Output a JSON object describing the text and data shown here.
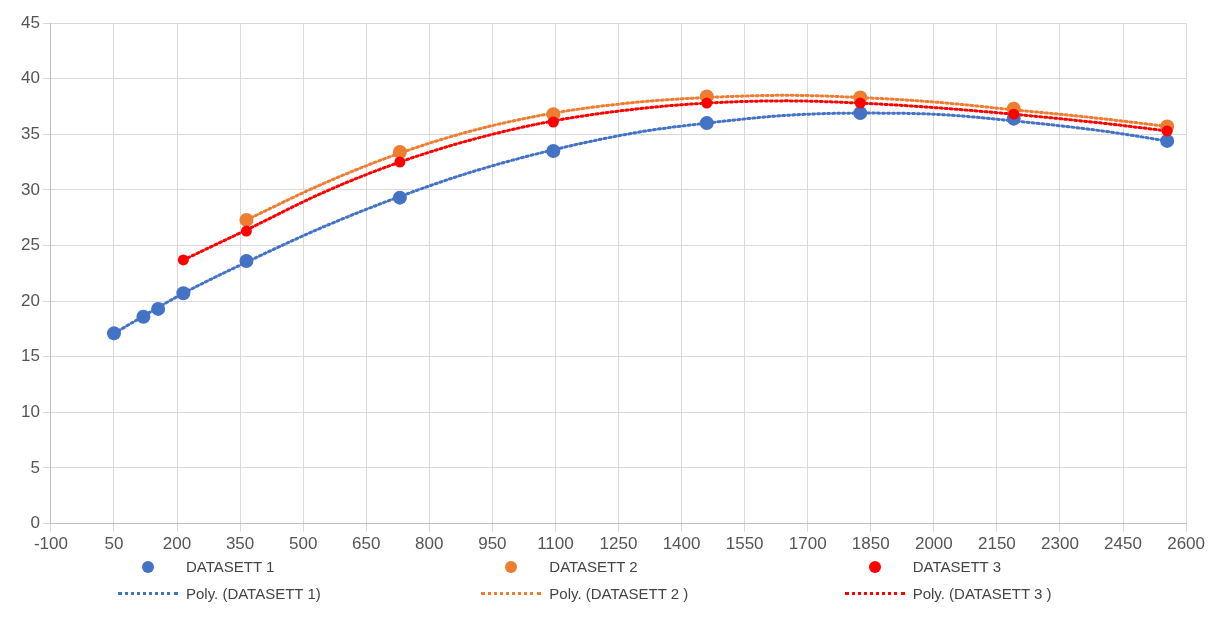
{
  "chart_data": {
    "type": "scatter",
    "xlim": [
      -100,
      2600
    ],
    "xticks": [
      -100,
      50,
      200,
      350,
      500,
      650,
      800,
      950,
      1100,
      1250,
      1400,
      1550,
      1700,
      1850,
      2000,
      2150,
      2300,
      2450,
      2600
    ],
    "ylim": [
      0,
      45
    ],
    "yticks": [
      0,
      5,
      10,
      15,
      20,
      25,
      30,
      35,
      40,
      45
    ],
    "grid": true,
    "legend": "bottom",
    "series": [
      {
        "name": "DATASETT 1",
        "color": "#4472c4",
        "marker": "circle",
        "x": [
          50,
          120,
          155,
          215,
          365,
          730,
          1095,
          1460,
          1825,
          2190,
          2555
        ],
        "values": [
          17.1,
          18.6,
          19.3,
          20.7,
          23.6,
          29.3,
          33.5,
          36.0,
          36.9,
          36.4,
          34.4
        ]
      },
      {
        "name": "DATASETT 2",
        "color": "#ed7d31",
        "marker": "circle",
        "x": [
          365,
          730,
          1095,
          1460,
          1825,
          2190,
          2555
        ],
        "values": [
          27.3,
          33.4,
          36.8,
          38.4,
          38.3,
          37.3,
          35.7
        ]
      },
      {
        "name": "DATASETT 3",
        "color": "#ff0000",
        "marker": "circle",
        "x": [
          215,
          365,
          730,
          1095,
          1460,
          1825,
          2190,
          2555
        ],
        "values": [
          23.7,
          26.3,
          32.5,
          36.1,
          37.8,
          37.8,
          36.8,
          35.3
        ]
      },
      {
        "name": "Poly. (DATASETT 1)",
        "type": "line",
        "color": "#4472c4",
        "marker": "none",
        "line_style": "dotted",
        "x": [
          50,
          215,
          365,
          550,
          730,
          900,
          1095,
          1300,
          1460,
          1650,
          1825,
          2000,
          2190,
          2400,
          2555
        ],
        "values": [
          17.1,
          20.7,
          23.5,
          26.7,
          29.4,
          31.6,
          33.6,
          35.2,
          36.0,
          36.7,
          36.9,
          36.8,
          36.2,
          35.3,
          34.4
        ]
      },
      {
        "name": "Poly. (DATASETT 2 )",
        "type": "line",
        "color": "#ed7d31",
        "marker": "none",
        "line_style": "dotted",
        "x": [
          365,
          550,
          730,
          900,
          1095,
          1300,
          1460,
          1650,
          1825,
          2000,
          2190,
          2400,
          2555
        ],
        "values": [
          27.3,
          30.6,
          33.3,
          35.3,
          36.9,
          37.9,
          38.3,
          38.5,
          38.3,
          37.9,
          37.2,
          36.4,
          35.7
        ]
      },
      {
        "name": "Poly. (DATASETT 3 )",
        "type": "line",
        "color": "#ff0000",
        "marker": "none",
        "line_style": "dotted",
        "x": [
          215,
          365,
          550,
          730,
          900,
          1095,
          1300,
          1460,
          1650,
          1825,
          2000,
          2190,
          2400,
          2555
        ],
        "values": [
          23.7,
          26.4,
          29.8,
          32.5,
          34.5,
          36.2,
          37.3,
          37.8,
          38.0,
          37.8,
          37.4,
          36.8,
          36.0,
          35.3
        ]
      }
    ]
  }
}
